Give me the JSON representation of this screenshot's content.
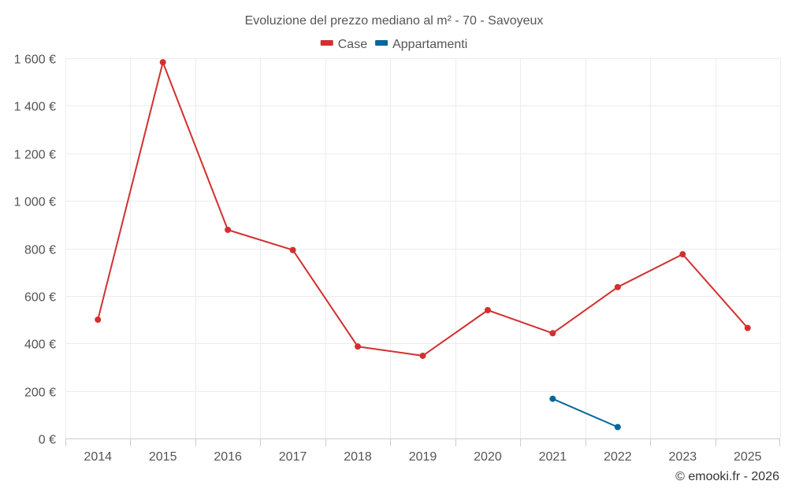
{
  "chart_data": {
    "type": "line",
    "title": "Evoluzione del prezzo mediano al m² - 70 - Savoyeux",
    "categories": [
      "2014",
      "2015",
      "2016",
      "2017",
      "2018",
      "2019",
      "2020",
      "2021",
      "2022",
      "2023",
      "2025"
    ],
    "series": [
      {
        "name": "Case",
        "color": "#d32f2f",
        "values": [
          500,
          1583,
          878,
          793,
          387,
          348,
          540,
          443,
          637,
          775,
          465
        ]
      },
      {
        "name": "Appartamenti",
        "color": "#01669a",
        "values": [
          null,
          null,
          null,
          null,
          null,
          null,
          null,
          167,
          48,
          null,
          null
        ]
      }
    ],
    "yticks": [
      0,
      200,
      400,
      600,
      800,
      1000,
      1200,
      1400,
      1600
    ],
    "ytick_labels": [
      "0 €",
      "200 €",
      "400 €",
      "600 €",
      "800 €",
      "1 000 €",
      "1 200 €",
      "1 400 €",
      "1 600 €"
    ],
    "ylim": [
      0,
      1600
    ],
    "grid": true,
    "legend_position": "top-center"
  },
  "credits": "© emooki.fr - 2026"
}
